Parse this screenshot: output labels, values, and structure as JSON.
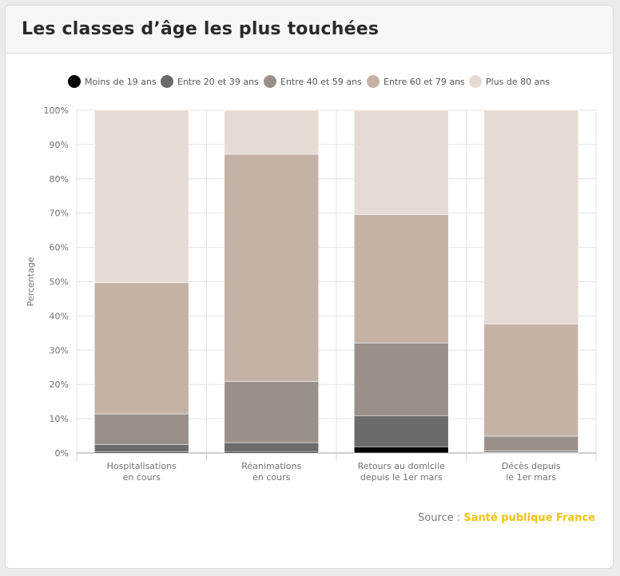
{
  "card": {
    "title": "Les classes d’âge les plus touchées"
  },
  "source": {
    "label": "Source : ",
    "link_text": "Santé publique France"
  },
  "colors": {
    "link": "#f2c20f"
  },
  "chart_data": {
    "type": "bar",
    "stacked": true,
    "ylabel": "Percentage",
    "ylim": [
      0,
      100
    ],
    "y_ticks": [
      "0%",
      "10%",
      "20%",
      "30%",
      "40%",
      "50%",
      "60%",
      "70%",
      "80%",
      "90%",
      "100%"
    ],
    "grid": true,
    "legend_position": "top",
    "categories": [
      [
        "Hospitalisations",
        "en cours"
      ],
      [
        "Réanimations",
        "en cours"
      ],
      [
        "Retours au domicile",
        "depuis le 1er mars"
      ],
      [
        "Décès depuis",
        "le 1er mars"
      ]
    ],
    "series": [
      {
        "name": "Moins de 19 ans",
        "color": "#000000",
        "values": [
          0.3,
          0.4,
          1.8,
          0.1
        ]
      },
      {
        "name": "Entre 20 et 39 ans",
        "color": "#6b6b6b",
        "values": [
          2.2,
          2.6,
          9.1,
          0.5
        ]
      },
      {
        "name": "Entre 40 et 59 ans",
        "color": "#9a908a",
        "values": [
          8.9,
          17.9,
          21.2,
          4.3
        ]
      },
      {
        "name": "Entre 60 et 79 ans",
        "color": "#c5b2a6",
        "values": [
          38.3,
          66.3,
          37.5,
          32.7
        ]
      },
      {
        "name": "Plus de 80 ans",
        "color": "#e6dbd2",
        "values": [
          50.3,
          12.8,
          30.4,
          62.4
        ]
      }
    ]
  }
}
